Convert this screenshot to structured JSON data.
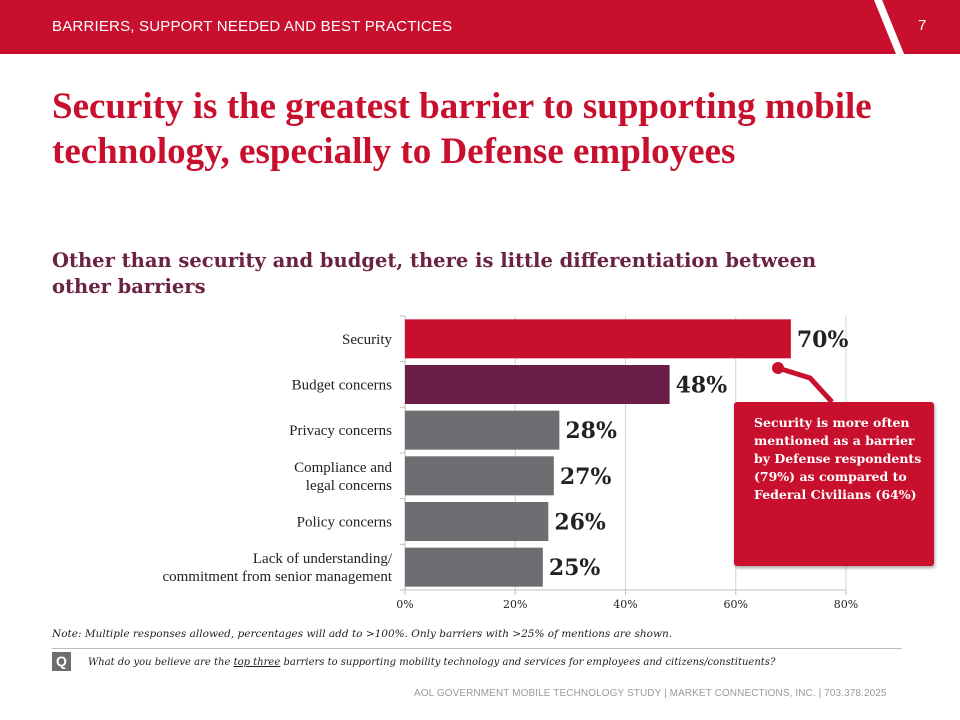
{
  "header": {
    "section_label": "BARRIERS, SUPPORT NEEDED AND BEST PRACTICES",
    "page_number": "7",
    "bar_color": "#c8102e",
    "accent_color": "#7f1420"
  },
  "title": "Security is the greatest barrier to supporting mobile technology, especially to Defense employees",
  "subtitle": "Other than security and budget, there is little differentiation between other barriers",
  "chart_data": {
    "type": "bar",
    "orientation": "horizontal",
    "categories": [
      "Security",
      "Budget concerns",
      "Privacy concerns",
      "Compliance and legal concerns",
      "Policy concerns",
      "Lack of understanding/ commitment from senior management"
    ],
    "category_lines": [
      [
        "Security"
      ],
      [
        "Budget concerns"
      ],
      [
        "Privacy concerns"
      ],
      [
        "Compliance and",
        "legal concerns"
      ],
      [
        "Policy concerns"
      ],
      [
        "Lack of understanding/",
        "commitment from senior management"
      ]
    ],
    "values": [
      70,
      48,
      28,
      27,
      26,
      25
    ],
    "value_labels": [
      "70%",
      "48%",
      "28%",
      "27%",
      "26%",
      "25%"
    ],
    "bar_colors": [
      "#c8102e",
      "#6b1e47",
      "#6d6e71",
      "#6d6e71",
      "#6d6e71",
      "#6d6e71"
    ],
    "xlim": [
      0,
      80
    ],
    "xticks": [
      0,
      20,
      40,
      60,
      80
    ],
    "xtick_labels": [
      "0%",
      "20%",
      "40%",
      "60%",
      "80%"
    ],
    "grid": true
  },
  "callout": {
    "text": "Security is more often mentioned as a barrier by Defense respondents (79%) as compared to Federal Civilians (64%)",
    "color": "#c8102e"
  },
  "note": "Note: Multiple responses allowed, percentages will add to >100%. Only barriers with >25% of mentions are shown.",
  "question": {
    "icon_label": "Q",
    "prefix": "What do you believe are the",
    "underlined": "top three",
    "suffix": "barriers to supporting mobility technology and services for employees and citizens/constituents?"
  },
  "footer": "AOL GOVERNMENT MOBILE TECHNOLOGY STUDY  |  MARKET CONNECTIONS, INC.  |  703.378.2025"
}
